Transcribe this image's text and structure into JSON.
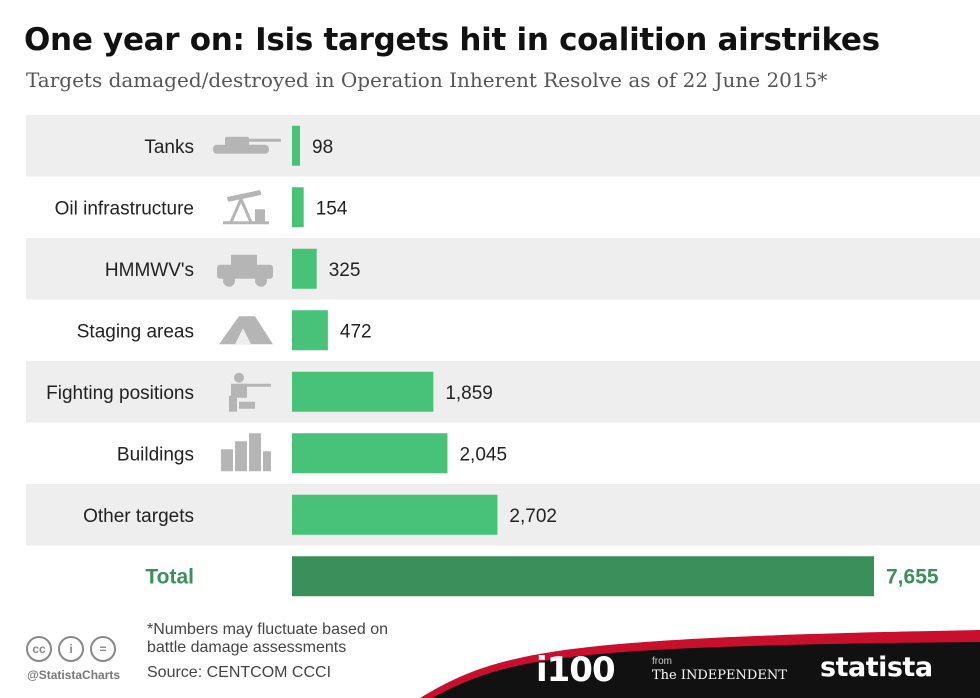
{
  "header": {
    "title": "One year on: Isis targets hit in coalition airstrikes",
    "subtitle": "Targets damaged/destroyed in Operation Inherent Resolve as of 22 June 2015*"
  },
  "chart_data": {
    "type": "bar",
    "orientation": "horizontal",
    "categories": [
      "Tanks",
      "Oil infrastructure",
      "HMMWV's",
      "Staging areas",
      "Fighting positions",
      "Buildings",
      "Other targets",
      "Total"
    ],
    "values": [
      98,
      154,
      325,
      472,
      1859,
      2045,
      2702,
      7655
    ],
    "value_labels": [
      "98",
      "154",
      "325",
      "472",
      "1,859",
      "2,045",
      "2,702",
      "7,655"
    ],
    "icons": [
      "tank-icon",
      "oil-pump-icon",
      "humvee-icon",
      "tent-icon",
      "soldier-icon",
      "buildings-icon",
      "",
      ""
    ],
    "bar_color": "#47c278",
    "total_color": "#3a8f5a",
    "row_shade": "#eeeeee",
    "grid": false
  },
  "footer": {
    "footnote": "*Numbers may fluctuate based on battle damage assessments",
    "source": "Source: CENTCOM CCCI",
    "handle": "@StatistaCharts",
    "cc_icons": [
      "cc",
      "i",
      "="
    ],
    "logos": {
      "i100": "i100",
      "from": "from",
      "independent": "The INDEPENDENT",
      "statista": "statista"
    }
  }
}
